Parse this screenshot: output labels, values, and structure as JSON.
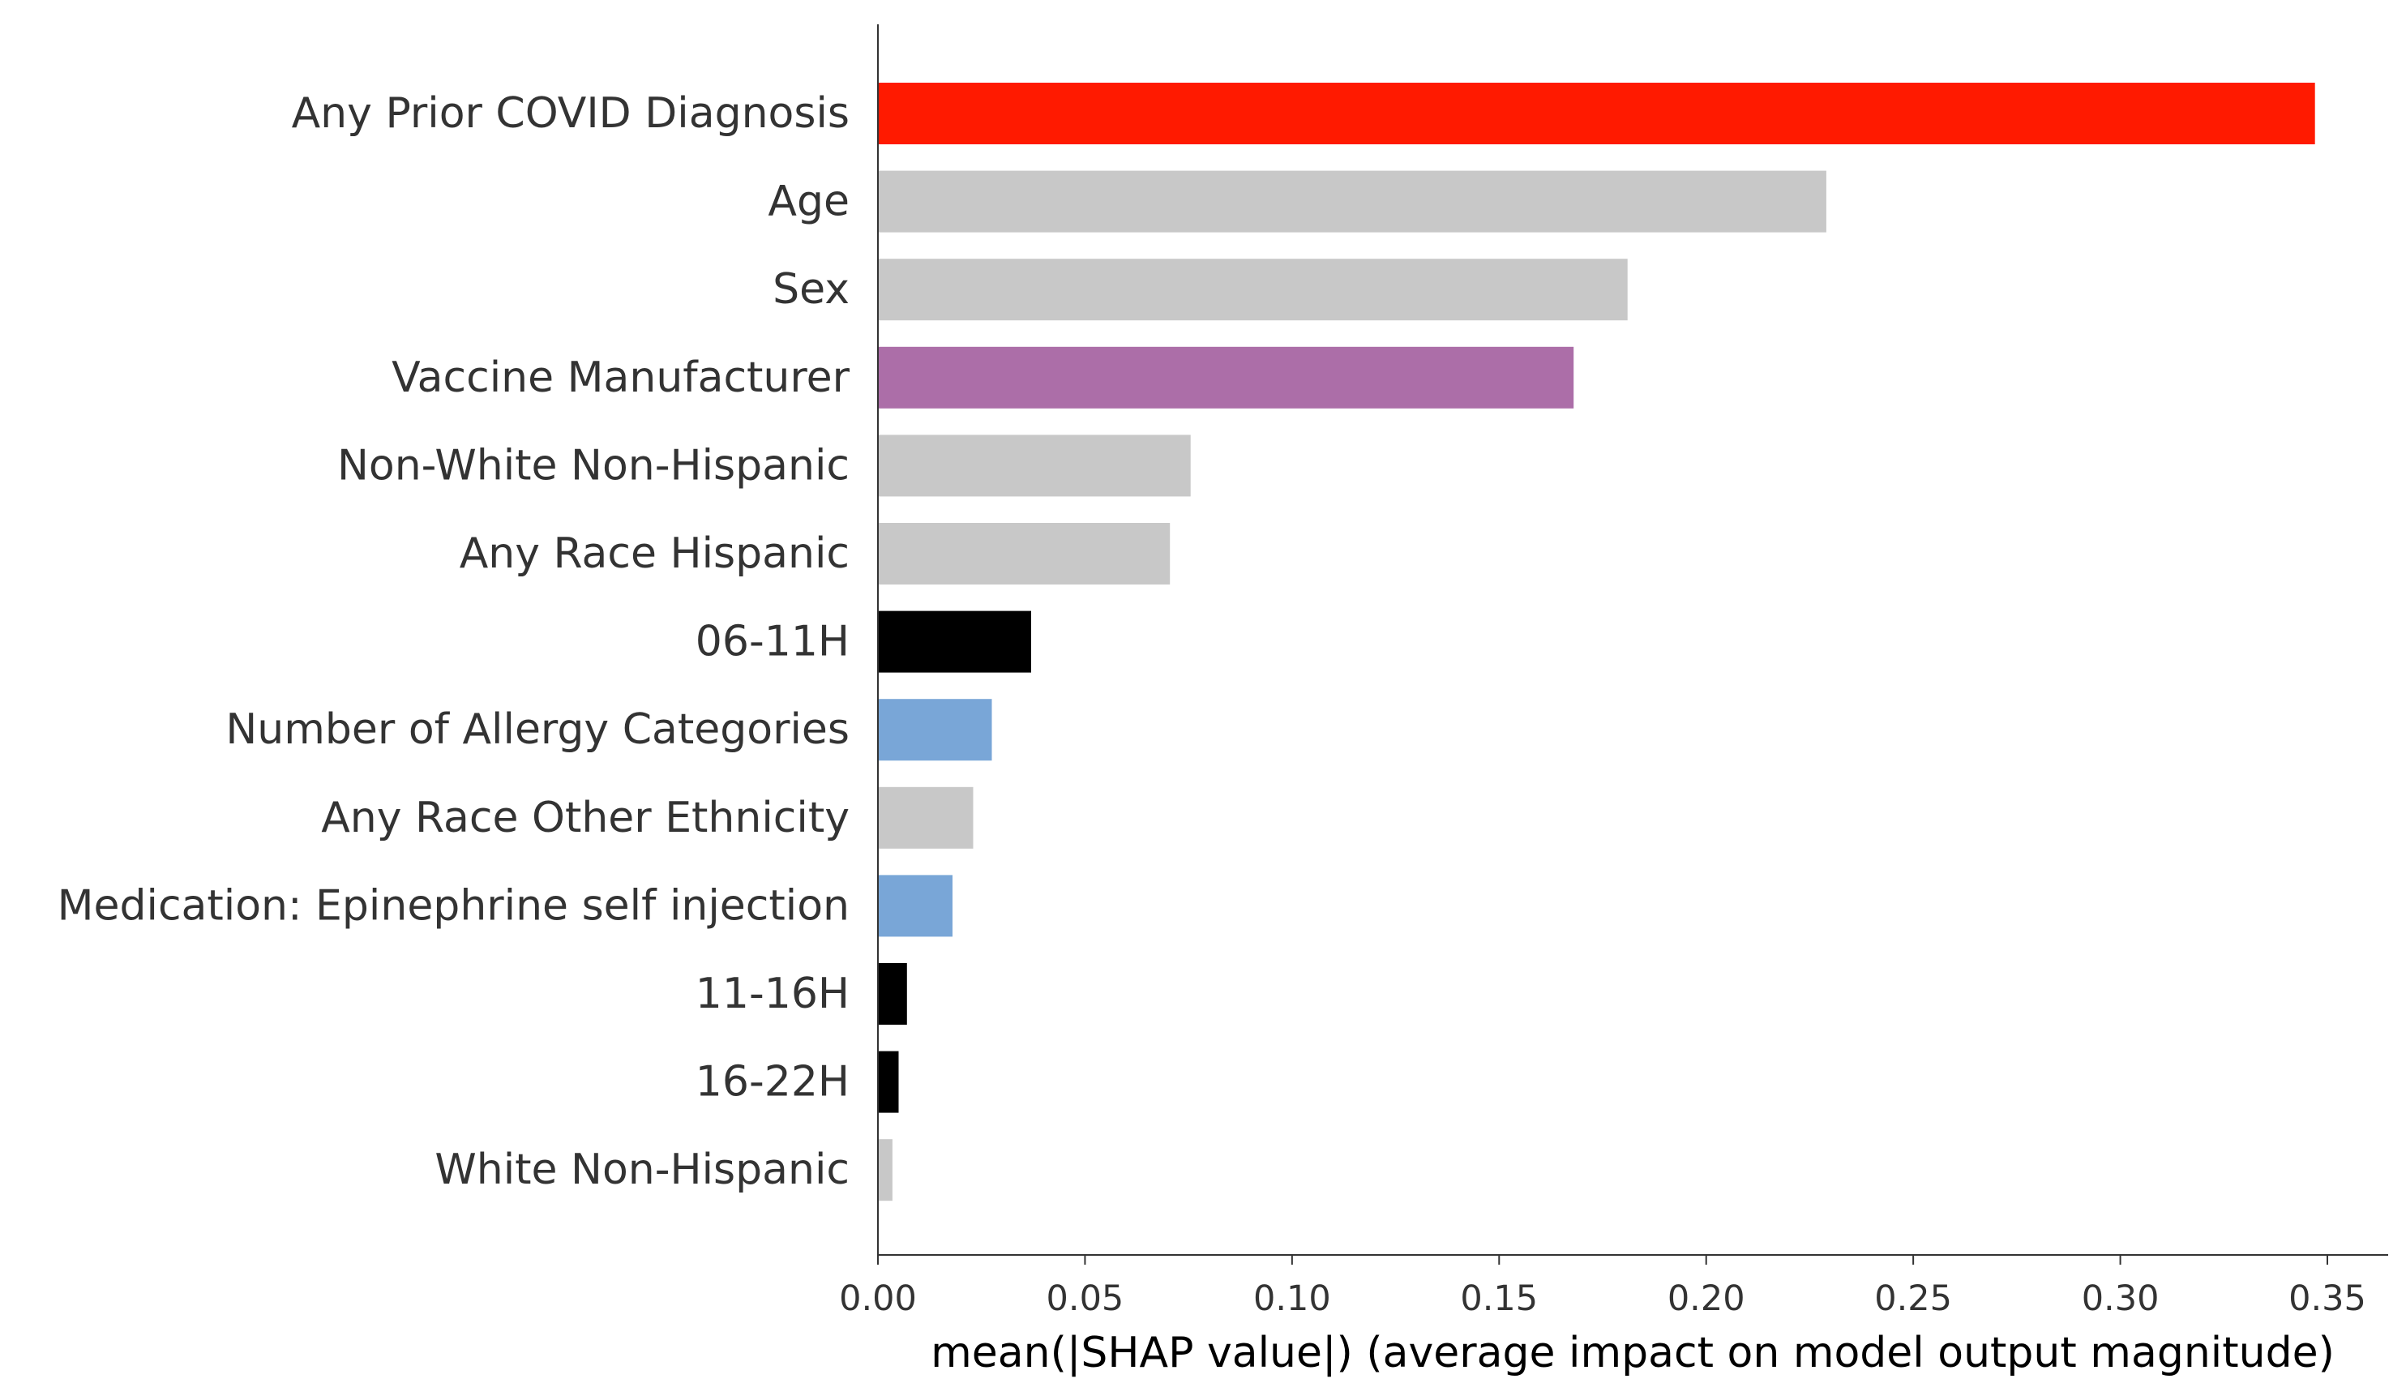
{
  "chart_data": {
    "type": "bar",
    "orientation": "horizontal",
    "xlabel": "mean(|SHAP value|) (average impact on model output magnitude)",
    "xlim": [
      0,
      0.365
    ],
    "xticks": [
      0.0,
      0.05,
      0.1,
      0.15,
      0.2,
      0.25,
      0.3,
      0.35
    ],
    "xtick_labels": [
      "0.00",
      "0.05",
      "0.10",
      "0.15",
      "0.20",
      "0.25",
      "0.30",
      "0.35"
    ],
    "grid": false,
    "legend": "none",
    "categories": [
      "Any Prior COVID Diagnosis",
      "Age",
      "Sex",
      "Vaccine Manufacturer",
      "Non-White Non-Hispanic",
      "Any Race Hispanic",
      "06-11H",
      "Number of Allergy Categories",
      "Any Race Other Ethnicity",
      "Medication: Epinephrine self injection",
      "11-16H",
      "16-22H",
      "White Non-Hispanic"
    ],
    "values": [
      0.347,
      0.229,
      0.181,
      0.168,
      0.0755,
      0.0705,
      0.037,
      0.0275,
      0.023,
      0.018,
      0.007,
      0.005,
      0.0035
    ],
    "colors": [
      "#ff1a00",
      "#c8c8c8",
      "#c8c8c8",
      "#ac6ea8",
      "#c8c8c8",
      "#c8c8c8",
      "#000000",
      "#79a6d7",
      "#c8c8c8",
      "#79a6d7",
      "#000000",
      "#000000",
      "#c8c8c8"
    ]
  },
  "colors": {
    "axis": "#333333",
    "label_text": "#333333"
  }
}
